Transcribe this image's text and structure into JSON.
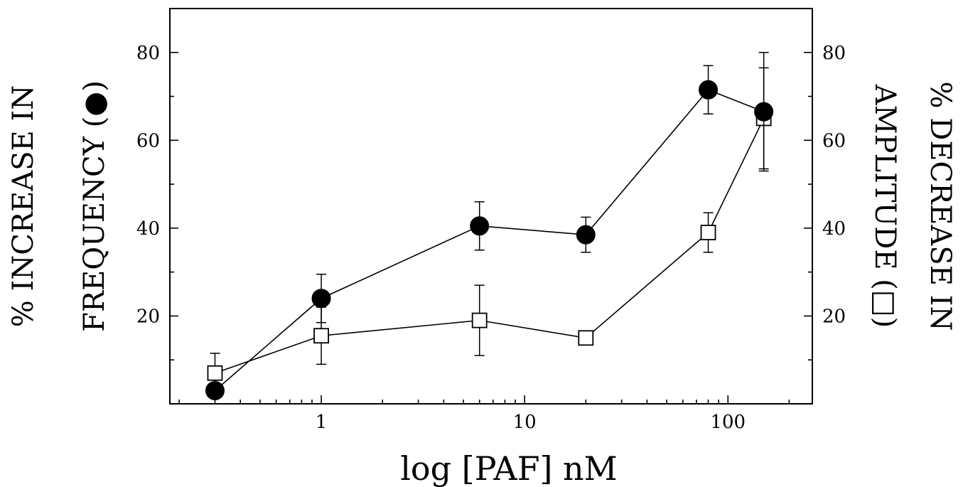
{
  "chart_data": {
    "type": "scatter",
    "title": "",
    "xlabel": "log [PAF] nM",
    "ylabel_left": "% INCREASE IN FREQUENCY (●)",
    "ylabel_left_lines": [
      "% INCREASE IN",
      "FREQUENCY (●)"
    ],
    "ylabel_right": "% DECREASE IN AMPLITUDE (□)",
    "ylabel_right_lines": [
      "% DECREASE IN",
      "AMPLITUDE (□)"
    ],
    "x_scale": "log",
    "xlim": [
      0.18,
      260
    ],
    "ylim": [
      0,
      90
    ],
    "x_ticks": [
      1,
      10,
      100
    ],
    "x_tick_labels": [
      "1",
      "10",
      "100"
    ],
    "y_ticks": [
      20,
      40,
      60,
      80
    ],
    "y_tick_labels": [
      "20",
      "40",
      "60",
      "80"
    ],
    "grid": false,
    "legend": "none",
    "series": [
      {
        "marker": "filled-circle",
        "axis": "left",
        "x": [
          0.3,
          1,
          6,
          20,
          80,
          150
        ],
        "y": [
          3,
          24,
          40.5,
          38.5,
          71.5,
          66.5
        ],
        "err": [
          0,
          5.5,
          5.5,
          4,
          5.5,
          13.5
        ]
      },
      {
        "marker": "open-square",
        "axis": "right",
        "x": [
          0.3,
          1,
          6,
          20,
          80,
          150
        ],
        "y": [
          7,
          15.5,
          19,
          15,
          39,
          65
        ],
        "err": [
          4.5,
          6.5,
          8,
          0,
          4.5,
          11.5
        ]
      }
    ]
  }
}
